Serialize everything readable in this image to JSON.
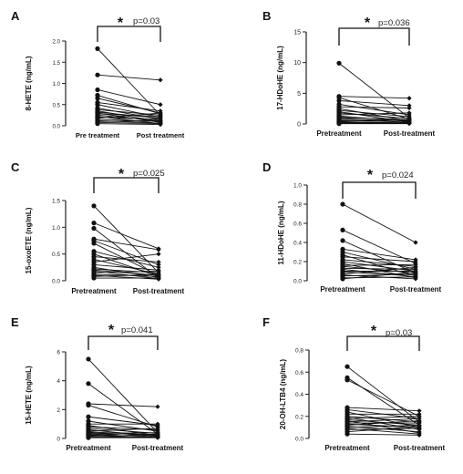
{
  "chart_data": [
    {
      "panel": "A",
      "type": "scatter",
      "ylabel": "8-HETE (ng/mL)",
      "categories": [
        "Pre treatment",
        "Post treatment"
      ],
      "ylim": [
        0,
        2.0
      ],
      "yticks": [
        "0.0",
        "0.5",
        "1.0",
        "1.5",
        "2.0"
      ],
      "significance": {
        "star": "*",
        "p": "p=0.03"
      },
      "pairs": [
        [
          1.82,
          0.25
        ],
        [
          1.2,
          1.08
        ],
        [
          0.85,
          0.5
        ],
        [
          0.72,
          0.28
        ],
        [
          0.65,
          0.3
        ],
        [
          0.55,
          0.35
        ],
        [
          0.5,
          0.2
        ],
        [
          0.42,
          0.15
        ],
        [
          0.38,
          0.25
        ],
        [
          0.35,
          0.1
        ],
        [
          0.32,
          0.18
        ],
        [
          0.3,
          0.08
        ],
        [
          0.28,
          0.22
        ],
        [
          0.25,
          0.12
        ],
        [
          0.22,
          0.05
        ],
        [
          0.2,
          0.15
        ],
        [
          0.18,
          0.3
        ],
        [
          0.15,
          0.1
        ],
        [
          0.12,
          0.06
        ],
        [
          0.1,
          0.12
        ],
        [
          0.08,
          0.05
        ],
        [
          0.05,
          0.03
        ]
      ]
    },
    {
      "panel": "B",
      "type": "scatter",
      "ylabel": "17-HDoHE (ng/mL)",
      "categories": [
        "Pretreatment",
        "Post-treatment"
      ],
      "ylim": [
        0,
        15
      ],
      "yticks": [
        "0",
        "5",
        "10",
        "15"
      ],
      "significance": {
        "star": "*",
        "p": "p=0.036"
      },
      "pairs": [
        [
          9.9,
          1.0
        ],
        [
          4.5,
          4.2
        ],
        [
          4.3,
          0.8
        ],
        [
          3.8,
          3.0
        ],
        [
          3.2,
          1.5
        ],
        [
          2.8,
          2.6
        ],
        [
          2.5,
          0.5
        ],
        [
          2.2,
          1.2
        ],
        [
          2.0,
          0.3
        ],
        [
          1.8,
          0.9
        ],
        [
          1.5,
          1.8
        ],
        [
          1.3,
          0.4
        ],
        [
          1.1,
          0.7
        ],
        [
          1.0,
          0.2
        ],
        [
          0.8,
          0.5
        ],
        [
          0.6,
          0.3
        ],
        [
          0.5,
          0.6
        ],
        [
          0.4,
          0.1
        ],
        [
          0.3,
          0.2
        ],
        [
          0.2,
          0.1
        ],
        [
          0.1,
          0.15
        ],
        [
          0.05,
          0.05
        ]
      ]
    },
    {
      "panel": "C",
      "type": "scatter",
      "ylabel": "15-oxoETE (ng/mL)",
      "categories": [
        "Pretreatment",
        "Post-treatment"
      ],
      "ylim": [
        0,
        1.5
      ],
      "yticks": [
        "0.0",
        "0.5",
        "1.0",
        "1.5"
      ],
      "significance": {
        "star": "*",
        "p": "p=0.025"
      },
      "pairs": [
        [
          1.4,
          0.15
        ],
        [
          1.08,
          0.6
        ],
        [
          0.98,
          0.05
        ],
        [
          0.78,
          0.58
        ],
        [
          0.75,
          0.3
        ],
        [
          0.7,
          0.1
        ],
        [
          0.55,
          0.25
        ],
        [
          0.5,
          0.08
        ],
        [
          0.45,
          0.35
        ],
        [
          0.4,
          0.12
        ],
        [
          0.35,
          0.5
        ],
        [
          0.3,
          0.2
        ],
        [
          0.25,
          0.06
        ],
        [
          0.22,
          0.15
        ],
        [
          0.2,
          0.1
        ],
        [
          0.18,
          0.04
        ],
        [
          0.15,
          0.18
        ],
        [
          0.12,
          0.08
        ],
        [
          0.1,
          0.03
        ],
        [
          0.08,
          0.12
        ],
        [
          0.05,
          0.05
        ]
      ]
    },
    {
      "panel": "D",
      "type": "scatter",
      "ylabel": "11-HDoHE (ng/mL)",
      "categories": [
        "Pretreatment",
        "Post-treatment"
      ],
      "ylim": [
        0,
        1.0
      ],
      "yticks": [
        "0.0",
        "0.2",
        "0.4",
        "0.6",
        "0.8",
        "1.0"
      ],
      "significance": {
        "star": "*",
        "p": "p=0.024"
      },
      "pairs": [
        [
          0.8,
          0.4
        ],
        [
          0.53,
          0.18
        ],
        [
          0.42,
          0.08
        ],
        [
          0.33,
          0.22
        ],
        [
          0.3,
          0.12
        ],
        [
          0.27,
          0.05
        ],
        [
          0.25,
          0.2
        ],
        [
          0.22,
          0.15
        ],
        [
          0.2,
          0.1
        ],
        [
          0.18,
          0.03
        ],
        [
          0.16,
          0.17
        ],
        [
          0.15,
          0.08
        ],
        [
          0.13,
          0.12
        ],
        [
          0.12,
          0.04
        ],
        [
          0.1,
          0.1
        ],
        [
          0.09,
          0.06
        ],
        [
          0.07,
          0.14
        ],
        [
          0.06,
          0.02
        ],
        [
          0.05,
          0.07
        ],
        [
          0.03,
          0.04
        ],
        [
          0.02,
          0.09
        ]
      ]
    },
    {
      "panel": "E",
      "type": "scatter",
      "ylabel": "15-HETE (ng/mL)",
      "categories": [
        "Pretreatment",
        "Post-treatment"
      ],
      "ylim": [
        0,
        6
      ],
      "yticks": [
        "0",
        "2",
        "4",
        "6"
      ],
      "significance": {
        "star": "*",
        "p": "p=0.041"
      },
      "pairs": [
        [
          5.5,
          0.4
        ],
        [
          3.8,
          0.3
        ],
        [
          2.4,
          2.2
        ],
        [
          2.3,
          0.8
        ],
        [
          1.5,
          0.9
        ],
        [
          1.2,
          0.5
        ],
        [
          1.0,
          1.0
        ],
        [
          0.9,
          0.2
        ],
        [
          0.8,
          0.6
        ],
        [
          0.7,
          0.35
        ],
        [
          0.6,
          0.15
        ],
        [
          0.5,
          0.7
        ],
        [
          0.45,
          0.25
        ],
        [
          0.4,
          0.1
        ],
        [
          0.35,
          0.4
        ],
        [
          0.3,
          0.2
        ],
        [
          0.25,
          0.05
        ],
        [
          0.2,
          0.3
        ],
        [
          0.15,
          0.1
        ],
        [
          0.1,
          0.08
        ],
        [
          0.05,
          0.05
        ]
      ]
    },
    {
      "panel": "F",
      "type": "scatter",
      "ylabel": "20-OH-LTB4 (ng/mL)",
      "categories": [
        "Pretreatment",
        "Post-treatment"
      ],
      "ylim": [
        0,
        0.8
      ],
      "yticks": [
        "0.0",
        "0.2",
        "0.4",
        "0.6",
        "0.8"
      ],
      "significance": {
        "star": "*",
        "p": "p=0.03"
      },
      "pairs": [
        [
          0.65,
          0.15
        ],
        [
          0.55,
          0.12
        ],
        [
          0.53,
          0.2
        ],
        [
          0.28,
          0.25
        ],
        [
          0.26,
          0.18
        ],
        [
          0.24,
          0.1
        ],
        [
          0.22,
          0.22
        ],
        [
          0.2,
          0.15
        ],
        [
          0.19,
          0.08
        ],
        [
          0.18,
          0.2
        ],
        [
          0.17,
          0.12
        ],
        [
          0.16,
          0.05
        ],
        [
          0.15,
          0.18
        ],
        [
          0.14,
          0.14
        ],
        [
          0.13,
          0.1
        ],
        [
          0.12,
          0.16
        ],
        [
          0.11,
          0.06
        ],
        [
          0.1,
          0.12
        ],
        [
          0.09,
          0.04
        ],
        [
          0.08,
          0.09
        ],
        [
          0.06,
          0.11
        ],
        [
          0.04,
          0.03
        ]
      ]
    }
  ]
}
